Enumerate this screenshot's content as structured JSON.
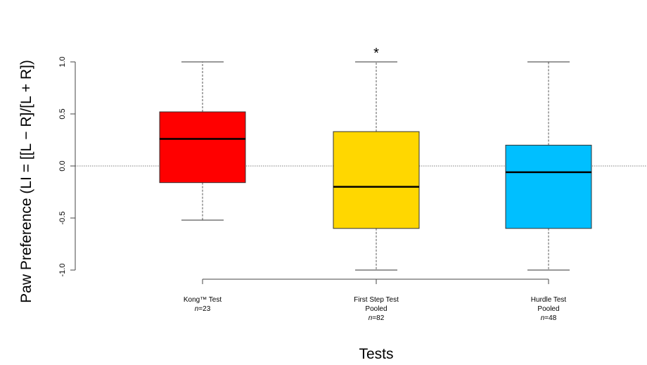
{
  "chart_data": {
    "type": "boxplot",
    "title": "",
    "xlabel": "Tests",
    "ylabel": "Paw Preference (LI = [[L − R]/[L + R])",
    "ylim": [
      -1.0,
      1.0
    ],
    "yticks": [
      "-1.0",
      "-0.5",
      "0.0",
      "0.5",
      "1.0"
    ],
    "reference_line": 0.0,
    "grid": false,
    "categories": [
      {
        "name": "Kong™ Test",
        "line2": "",
        "n": "=23"
      },
      {
        "name": "First Step Test",
        "line2": "Pooled",
        "n": "=82"
      },
      {
        "name": "Hurdle Test",
        "line2": "Pooled",
        "n": "=48"
      }
    ],
    "n_prefix": "n",
    "boxes": [
      {
        "whisker_low": -0.52,
        "q1": -0.16,
        "median": 0.26,
        "q3": 0.52,
        "whisker_high": 1.0,
        "color": "#ff0000",
        "annotation": ""
      },
      {
        "whisker_low": -1.0,
        "q1": -0.6,
        "median": -0.2,
        "q3": 0.33,
        "whisker_high": 1.0,
        "color": "#ffd700",
        "annotation": "*"
      },
      {
        "whisker_low": -1.0,
        "q1": -0.6,
        "median": -0.06,
        "q3": 0.2,
        "whisker_high": 1.0,
        "color": "#00bfff",
        "annotation": ""
      }
    ]
  }
}
